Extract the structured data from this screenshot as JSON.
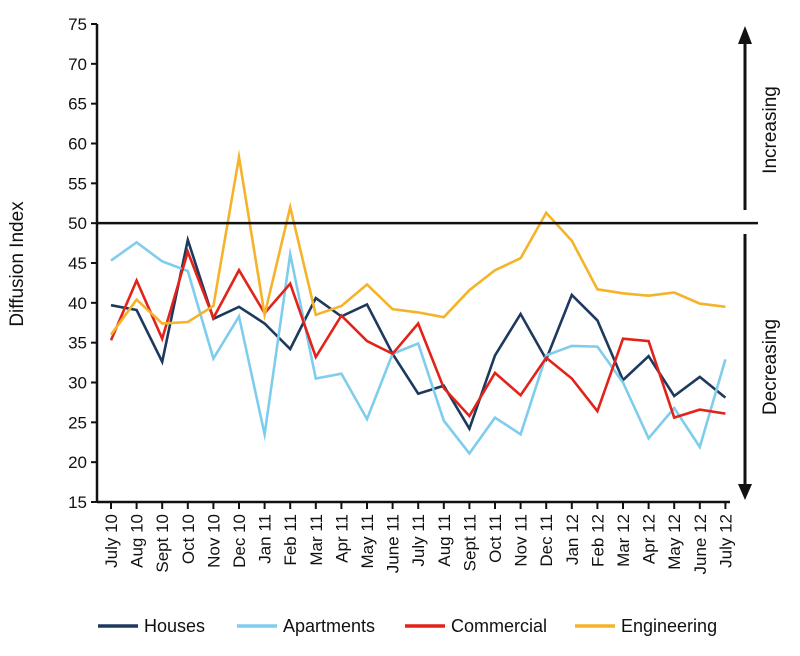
{
  "chart_data": {
    "type": "line",
    "ylabel": "Diffusion Index",
    "ylim": [
      15,
      75
    ],
    "yticks": [
      15,
      20,
      25,
      30,
      35,
      40,
      45,
      50,
      55,
      60,
      65,
      70,
      75
    ],
    "reference_line": 50,
    "side_labels": {
      "above": "Increasing",
      "below": "Decreasing"
    },
    "legend_position": "bottom",
    "grid": false,
    "categories": [
      "July 10",
      "Aug 10",
      "Sept 10",
      "Oct 10",
      "Nov 10",
      "Dec 10",
      "Jan 11",
      "Feb 11",
      "Mar 11",
      "Apr 11",
      "May 11",
      "June 11",
      "July 11",
      "Aug 11",
      "Sept 11",
      "Oct 11",
      "Nov 11",
      "Dec 11",
      "Jan 12",
      "Feb 12",
      "Mar 12",
      "Apr 12",
      "May 12",
      "June 12",
      "July 12"
    ],
    "series": [
      {
        "name": "Houses",
        "color": "#1d3a5e",
        "values": [
          39.7,
          39.1,
          32.6,
          47.9,
          38.0,
          39.5,
          37.4,
          34.2,
          40.6,
          38.3,
          39.8,
          33.6,
          28.6,
          29.6,
          24.2,
          33.4,
          38.6,
          32.9,
          41.0,
          37.8,
          30.3,
          33.3,
          28.3,
          30.7,
          28.1
        ]
      },
      {
        "name": "Apartments",
        "color": "#7fcdec",
        "values": [
          45.3,
          47.6,
          45.2,
          44.0,
          33.0,
          38.3,
          23.5,
          46.1,
          30.5,
          31.1,
          25.4,
          33.6,
          34.9,
          25.2,
          21.1,
          25.6,
          23.5,
          33.4,
          34.6,
          34.5,
          30.0,
          23.0,
          26.8,
          21.9,
          32.9
        ]
      },
      {
        "name": "Commercial",
        "color": "#e2231a",
        "values": [
          35.3,
          42.8,
          35.5,
          46.4,
          38.1,
          44.1,
          38.7,
          42.4,
          33.2,
          38.4,
          35.2,
          33.6,
          37.4,
          29.3,
          25.8,
          31.2,
          28.4,
          33.1,
          30.5,
          26.4,
          35.5,
          35.2,
          25.6,
          26.6,
          26.1
        ]
      },
      {
        "name": "Engineering",
        "color": "#f5b32a",
        "values": [
          36.0,
          40.4,
          37.4,
          37.6,
          39.6,
          58.3,
          38.5,
          52.0,
          38.5,
          39.6,
          42.3,
          39.2,
          38.8,
          38.2,
          41.6,
          44.1,
          45.6,
          51.3,
          47.8,
          41.7,
          41.2,
          40.9,
          41.3,
          39.9,
          39.5
        ]
      }
    ]
  }
}
